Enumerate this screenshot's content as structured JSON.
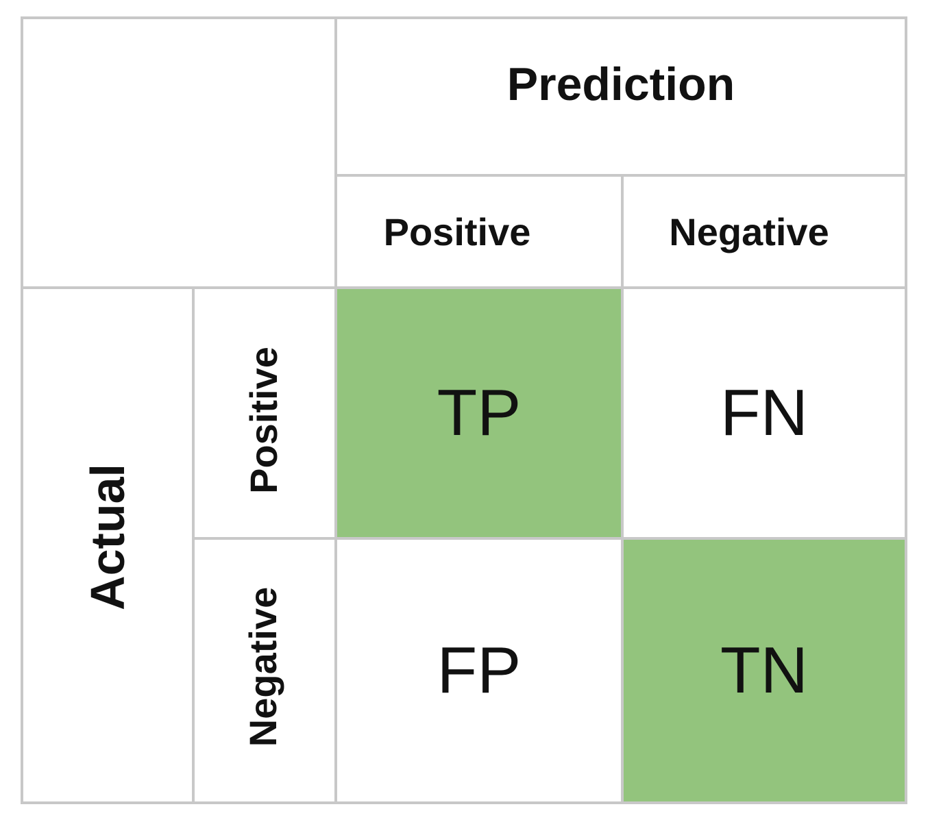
{
  "header": {
    "prediction": "Prediction",
    "actual": "Actual"
  },
  "columns": [
    "Positive",
    "Negative"
  ],
  "rows": [
    "Positive",
    "Negative"
  ],
  "cells": [
    [
      "TP",
      "FN"
    ],
    [
      "FP",
      "TN"
    ]
  ],
  "colors": {
    "highlight": "#93c47d",
    "border": "#c8c8c8",
    "background": "#ffffff"
  }
}
